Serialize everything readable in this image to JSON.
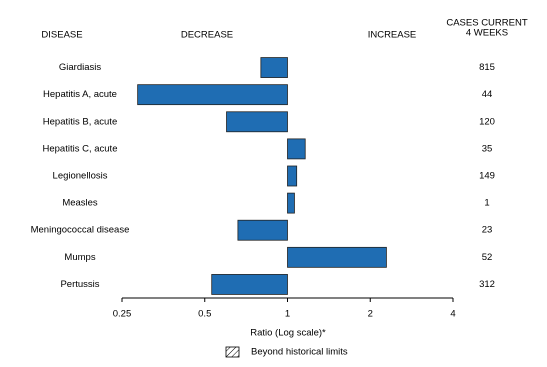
{
  "chart_data": {
    "type": "bar",
    "orientation": "horizontal",
    "log_scale": true,
    "headers": {
      "disease": "DISEASE",
      "decrease": "DECREASE",
      "increase": "INCREASE",
      "cases": [
        "CASES CURRENT",
        "4 WEEKS"
      ]
    },
    "categories": [
      "Giardiasis",
      "Hepatitis A, acute",
      "Hepatitis B, acute",
      "Hepatitis C, acute",
      "Legionellosis",
      "Measles",
      "Meningococcal disease",
      "Mumps",
      "Pertussis"
    ],
    "values": [
      0.8,
      0.285,
      0.6,
      1.16,
      1.08,
      1.06,
      0.66,
      2.29,
      0.53
    ],
    "cases": [
      815,
      44,
      120,
      35,
      149,
      1,
      23,
      52,
      312
    ],
    "color": "#1f6db3",
    "xlim": [
      0.25,
      4
    ],
    "xticks": [
      0.25,
      0.5,
      1,
      2,
      4
    ],
    "xlabel": "Ratio (Log scale)*",
    "legend": "Beyond historical limits"
  }
}
